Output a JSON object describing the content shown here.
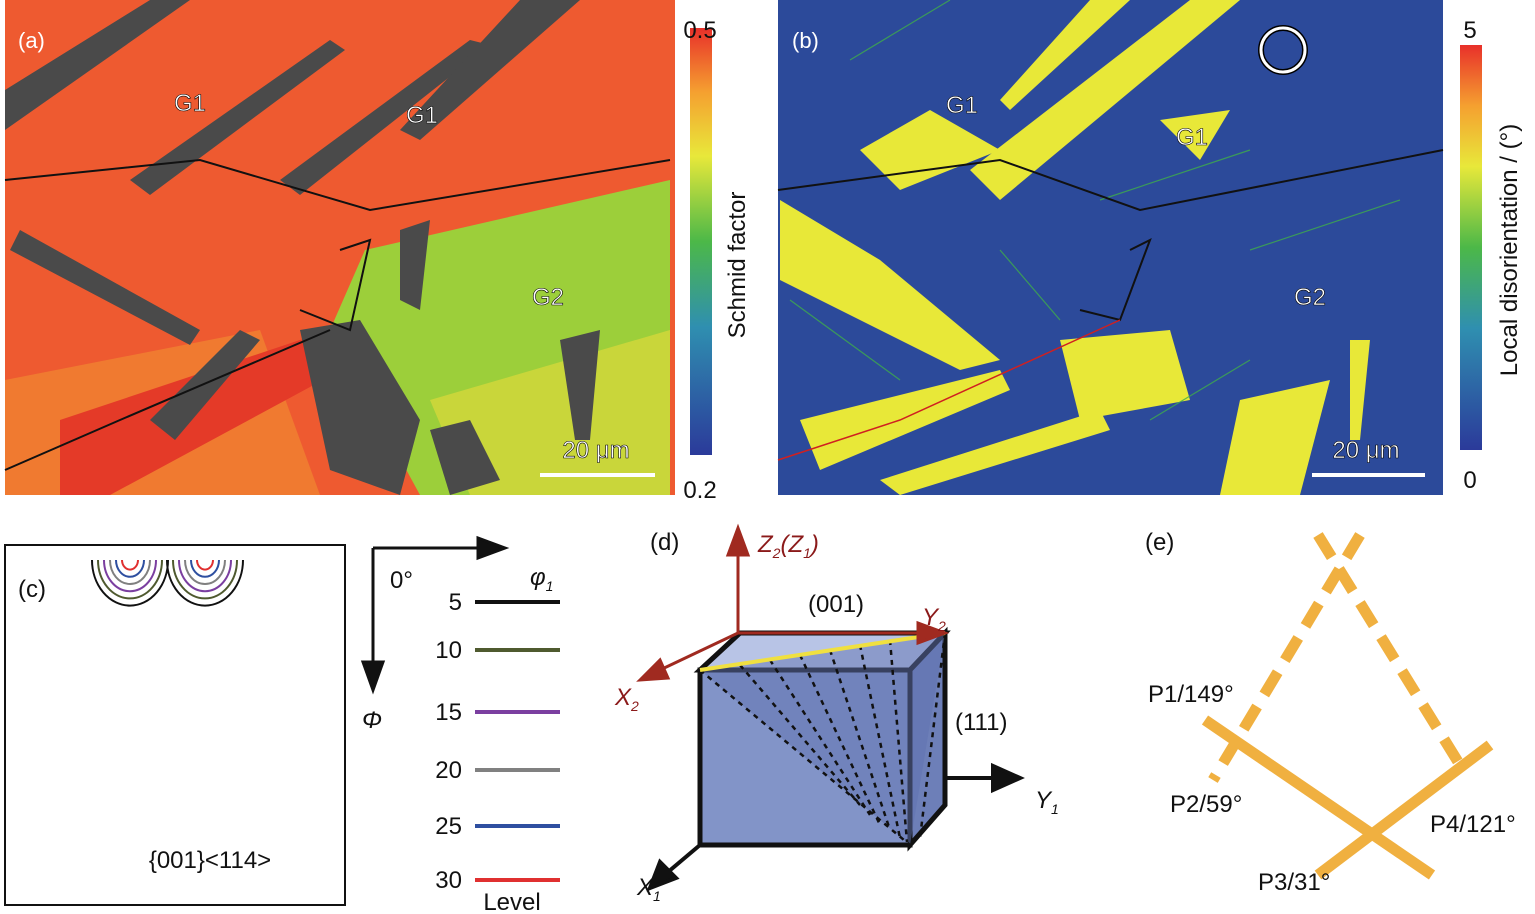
{
  "panels": {
    "a": {
      "label": "(a)",
      "grains": [
        "G1",
        "G1",
        "G2"
      ],
      "scale_bar": "20 μm",
      "colorbar": {
        "max": "0.5",
        "min": "0.2",
        "title": "Schmid factor"
      }
    },
    "b": {
      "label": "(b)",
      "grains": [
        "G1",
        "G1",
        "G2"
      ],
      "scale_bar": "20 μm",
      "colorbar": {
        "max": "5",
        "min": "0",
        "title": "Local disorientation / (°)"
      }
    },
    "c": {
      "label": "(c)",
      "texture": "{001}<114>",
      "axis_h": {
        "main": "φ",
        "sub": "1"
      },
      "axis_v": "Φ",
      "origin": "0°",
      "legend": {
        "title": "Level",
        "levels": [
          {
            "label": "5",
            "color": "#111111"
          },
          {
            "label": "10",
            "color": "#4f5a2f"
          },
          {
            "label": "15",
            "color": "#7b3fa0"
          },
          {
            "label": "20",
            "color": "#808080"
          },
          {
            "label": "25",
            "color": "#2e4fa0"
          },
          {
            "label": "30",
            "color": "#e03030"
          }
        ]
      }
    },
    "d": {
      "label": "(d)",
      "z": {
        "main": "Z",
        "sub": "2",
        "tail": "(Z",
        "sub2": "1",
        "close": ")"
      },
      "plane_top": "(001)",
      "plane_side": "(111)",
      "y2": {
        "main": "Y",
        "sub": "2"
      },
      "x2": {
        "main": "X",
        "sub": "2"
      },
      "y1": {
        "main": "Y",
        "sub": "1"
      },
      "x1": {
        "main": "X",
        "sub": "1"
      }
    },
    "e": {
      "label": "(e)",
      "planes": [
        "P1/149°",
        "P2/59°",
        "P3/31°",
        "P4/121°"
      ]
    }
  }
}
